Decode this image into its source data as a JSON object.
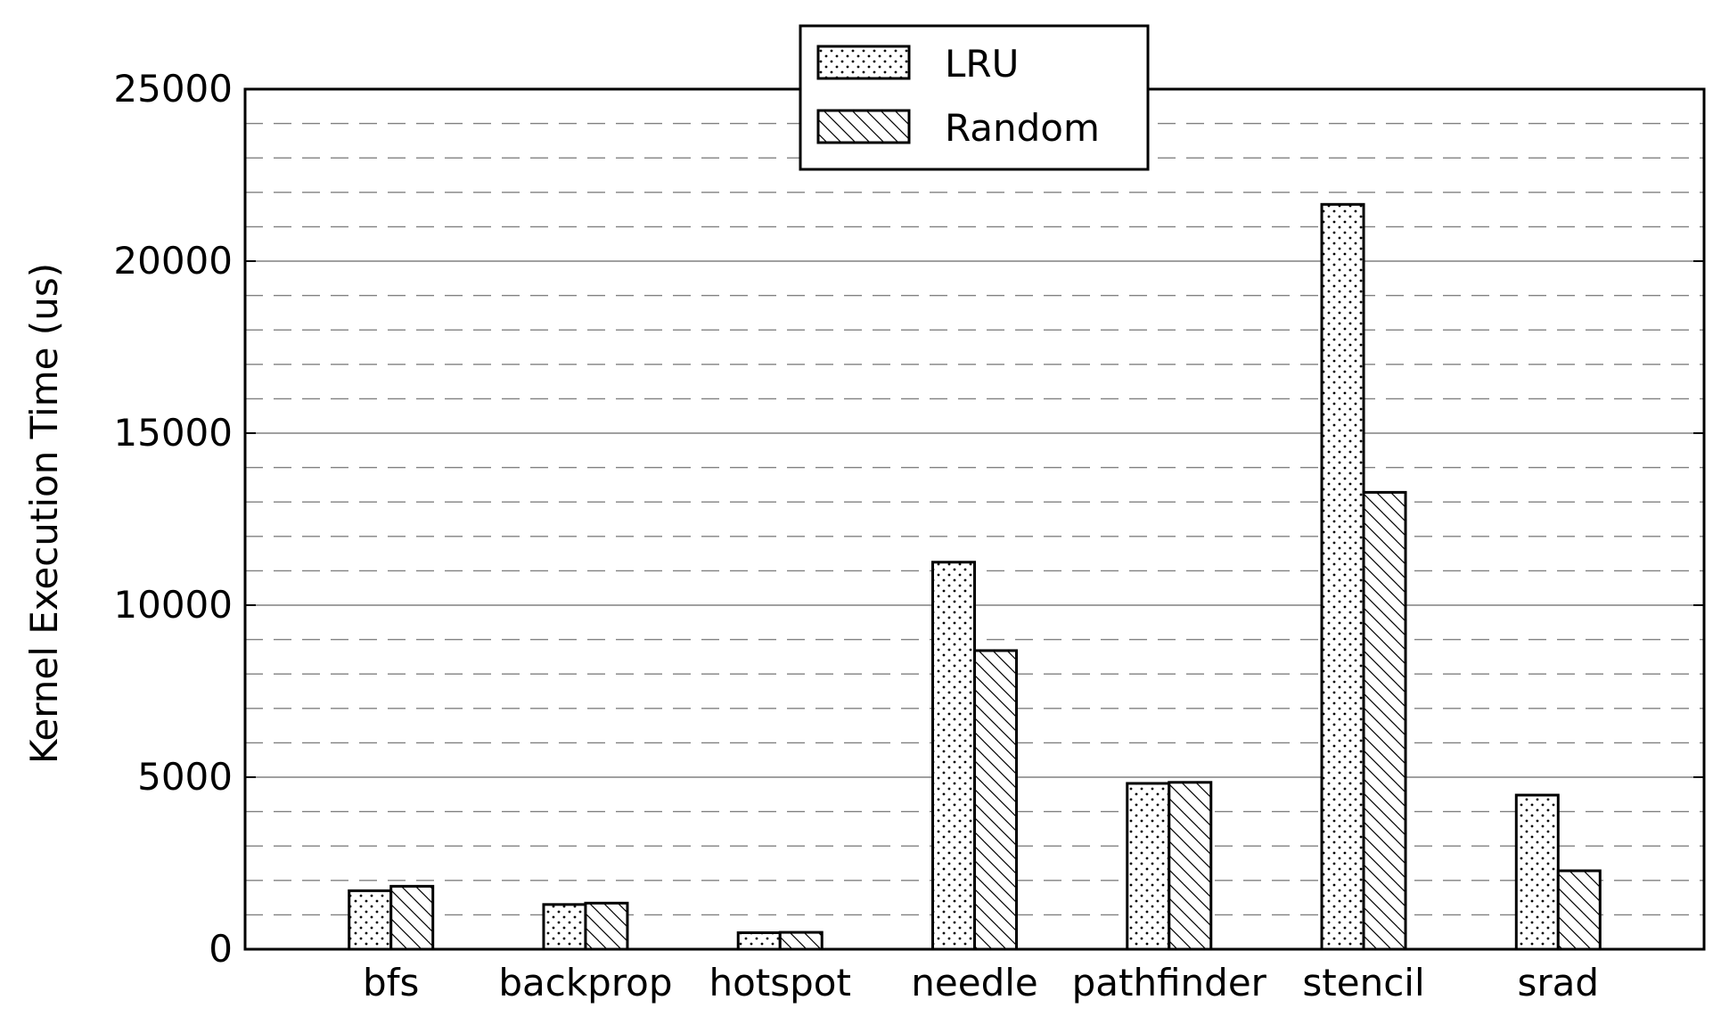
{
  "chart_data": {
    "type": "bar",
    "title": "",
    "xlabel": "",
    "ylabel": "Kernel Execution Time (us)",
    "categories": [
      "bfs",
      "backprop",
      "hotspot",
      "needle",
      "pathfinder",
      "stencil",
      "srad"
    ],
    "series": [
      {
        "name": "LRU",
        "pattern": "dots",
        "values": [
          1700,
          1300,
          480,
          11250,
          4820,
          21650,
          4480
        ]
      },
      {
        "name": "Random",
        "pattern": "hatch",
        "values": [
          1830,
          1340,
          490,
          8680,
          4850,
          13280,
          2280
        ]
      }
    ],
    "ylim": [
      0,
      25000
    ],
    "yticks": [
      "0",
      "5000",
      "10000",
      "15000",
      "20000",
      "25000"
    ],
    "grid": {
      "major": "solid",
      "minor": "dashed"
    },
    "legend": {
      "placement": "top-center"
    },
    "colors": {
      "bar_fill": "#ffffff",
      "bar_edge": "#000000",
      "major_grid": "#808080",
      "minor_grid": "#808080"
    }
  }
}
